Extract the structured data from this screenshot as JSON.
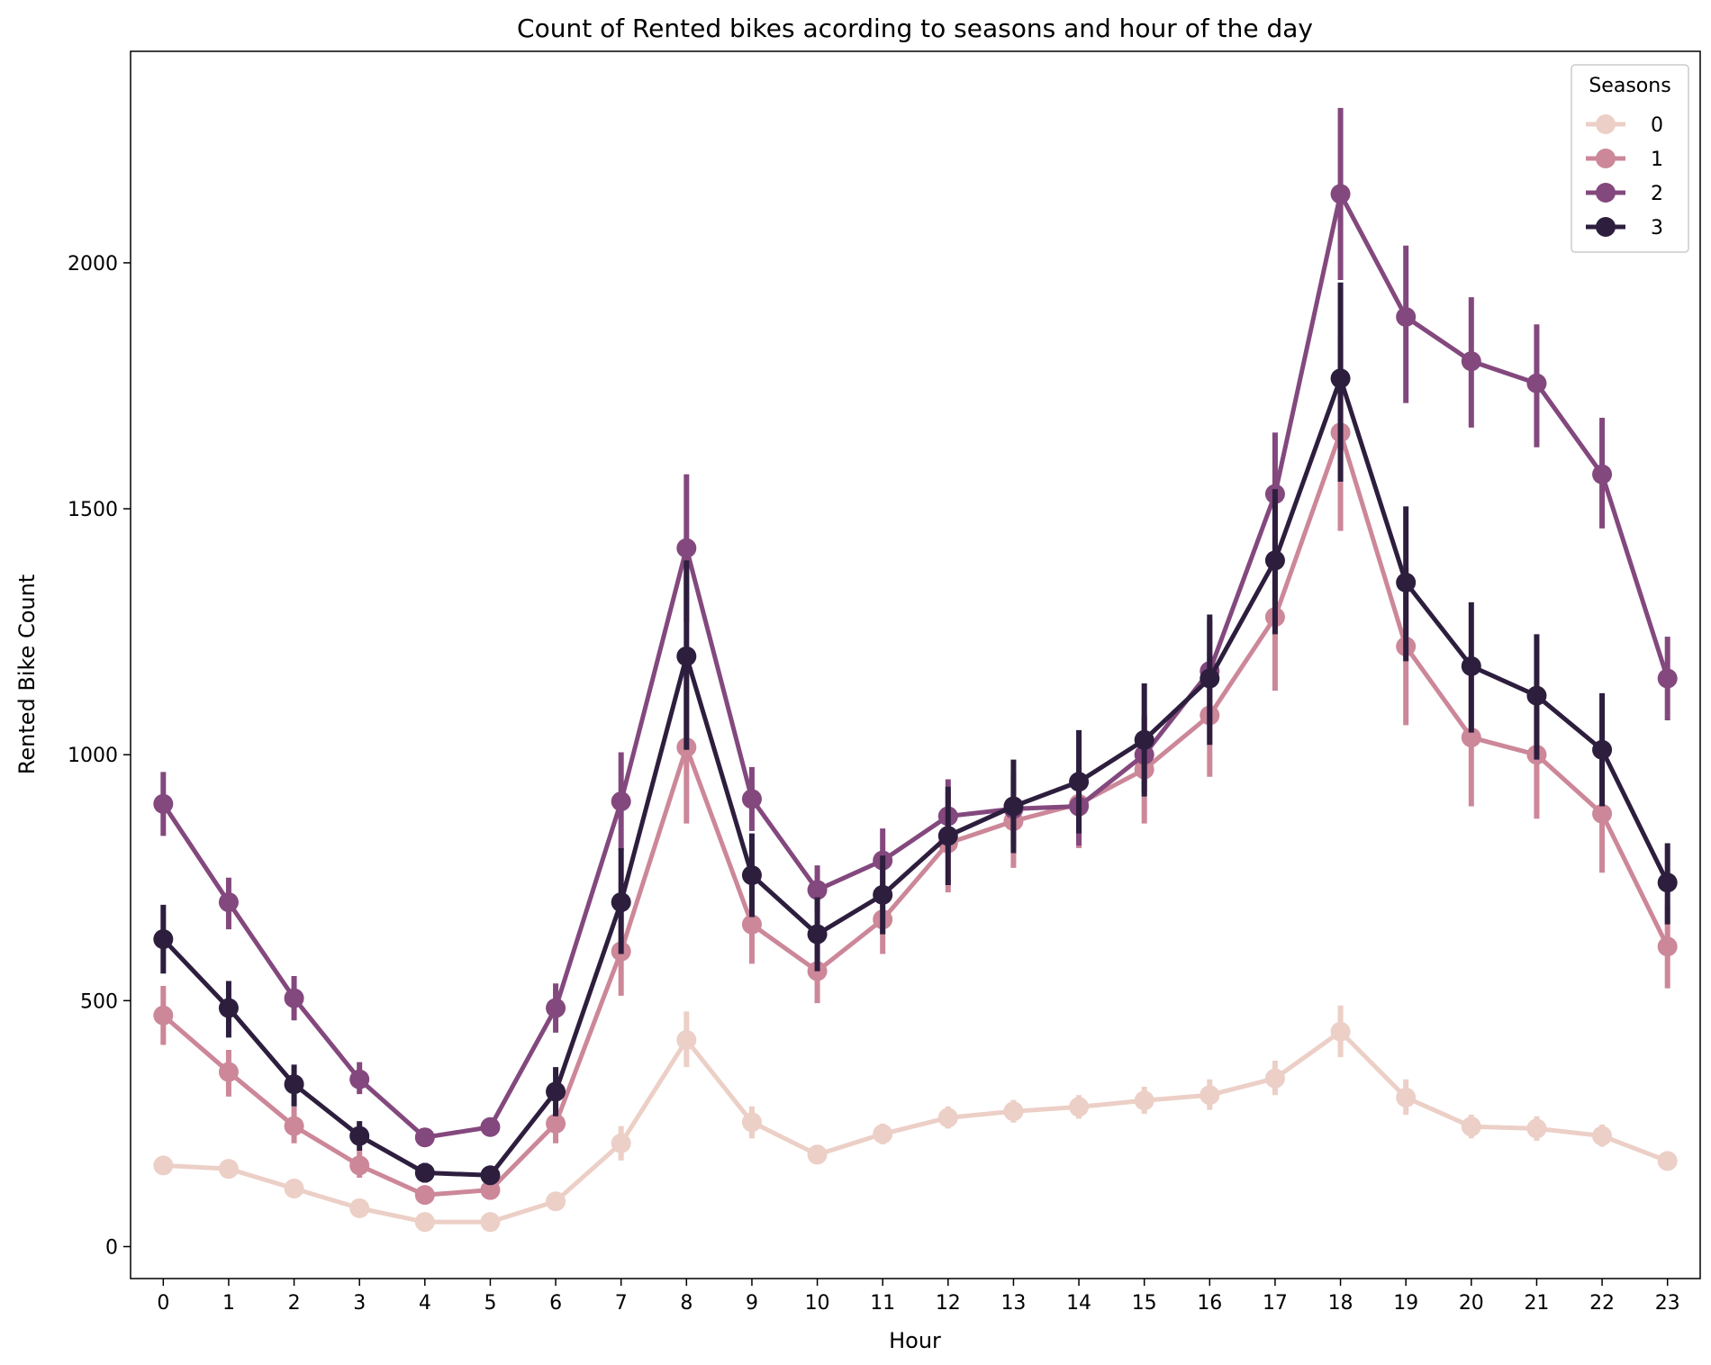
{
  "chart_data": {
    "type": "line",
    "title": "Count of Rented bikes acording to seasons and hour of the day",
    "xlabel": "Hour",
    "ylabel": "Rented Bike Count",
    "x": [
      0,
      1,
      2,
      3,
      4,
      5,
      6,
      7,
      8,
      9,
      10,
      11,
      12,
      13,
      14,
      15,
      16,
      17,
      18,
      19,
      20,
      21,
      22,
      23
    ],
    "xticks": [
      "0",
      "1",
      "2",
      "3",
      "4",
      "5",
      "6",
      "7",
      "8",
      "9",
      "10",
      "11",
      "12",
      "13",
      "14",
      "15",
      "16",
      "17",
      "18",
      "19",
      "20",
      "21",
      "22",
      "23"
    ],
    "ylim": [
      -65,
      2430
    ],
    "yticks": [
      0,
      500,
      1000,
      1500,
      2000
    ],
    "legend": {
      "title": "Seasons",
      "placement": "top-right"
    },
    "grid": false,
    "series": [
      {
        "name": "0",
        "color": "#eccfc6",
        "values": [
          165,
          158,
          118,
          78,
          50,
          50,
          92,
          210,
          420,
          253,
          187,
          229,
          262,
          275,
          284,
          297,
          308,
          342,
          437,
          303,
          244,
          240,
          225,
          174
        ],
        "ci_low": [
          150,
          145,
          106,
          68,
          42,
          42,
          80,
          175,
          365,
          220,
          168,
          208,
          240,
          252,
          260,
          270,
          278,
          308,
          385,
          268,
          220,
          215,
          203,
          160
        ],
        "ci_high": [
          180,
          172,
          130,
          88,
          58,
          58,
          104,
          245,
          478,
          285,
          207,
          250,
          285,
          298,
          308,
          325,
          340,
          378,
          490,
          340,
          268,
          265,
          248,
          188
        ]
      },
      {
        "name": "1",
        "color": "#cc8799",
        "values": [
          470,
          355,
          245,
          165,
          105,
          115,
          250,
          600,
          1015,
          655,
          560,
          665,
          820,
          865,
          900,
          970,
          1080,
          1280,
          1655,
          1220,
          1035,
          1000,
          880,
          610
        ],
        "ci_low": [
          410,
          305,
          210,
          140,
          90,
          98,
          210,
          510,
          860,
          575,
          495,
          595,
          720,
          770,
          810,
          860,
          955,
          1130,
          1455,
          1060,
          895,
          870,
          760,
          525
        ],
        "ci_high": [
          530,
          400,
          285,
          195,
          122,
          135,
          290,
          695,
          1165,
          735,
          630,
          735,
          925,
          955,
          995,
          1080,
          1210,
          1430,
          1850,
          1380,
          1175,
          1130,
          1000,
          695
        ]
      },
      {
        "name": "2",
        "color": "#83487d",
        "values": [
          900,
          700,
          505,
          340,
          222,
          243,
          485,
          905,
          1420,
          910,
          725,
          785,
          875,
          890,
          895,
          1000,
          1170,
          1530,
          2140,
          1890,
          1800,
          1755,
          1570,
          1155
        ],
        "ci_low": [
          835,
          645,
          460,
          310,
          205,
          225,
          435,
          805,
          1270,
          845,
          680,
          720,
          800,
          815,
          815,
          925,
          1065,
          1400,
          1965,
          1715,
          1665,
          1625,
          1460,
          1070
        ],
        "ci_high": [
          965,
          750,
          550,
          375,
          240,
          262,
          535,
          1005,
          1570,
          975,
          775,
          850,
          950,
          965,
          975,
          1080,
          1275,
          1655,
          2315,
          2035,
          1930,
          1875,
          1685,
          1240
        ]
      },
      {
        "name": "3",
        "color": "#2d1e3e",
        "values": [
          625,
          485,
          330,
          225,
          150,
          145,
          315,
          700,
          1200,
          755,
          635,
          715,
          835,
          895,
          945,
          1030,
          1155,
          1395,
          1765,
          1350,
          1180,
          1120,
          1010,
          740
        ],
        "ci_low": [
          555,
          425,
          285,
          195,
          130,
          128,
          265,
          595,
          1010,
          670,
          560,
          635,
          735,
          800,
          840,
          915,
          1020,
          1245,
          1555,
          1190,
          1045,
          990,
          895,
          655
        ],
        "ci_high": [
          695,
          540,
          370,
          255,
          170,
          162,
          365,
          810,
          1395,
          840,
          710,
          795,
          935,
          990,
          1050,
          1145,
          1285,
          1540,
          1960,
          1505,
          1310,
          1245,
          1125,
          820
        ]
      }
    ]
  }
}
